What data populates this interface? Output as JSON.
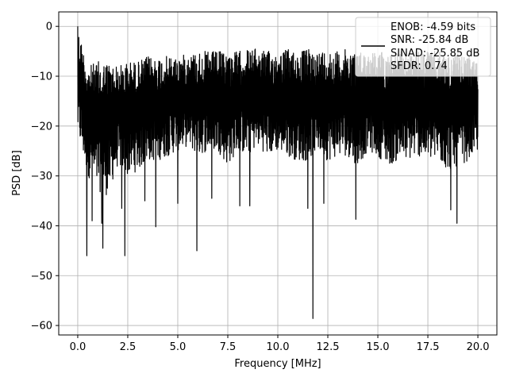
{
  "chart_data": {
    "type": "line",
    "title": "",
    "xlabel": "Frequency [MHz]",
    "ylabel": "PSD [dB]",
    "xlim": [
      -0.95,
      20.95
    ],
    "ylim": [
      -61.9,
      2.9
    ],
    "grid": true,
    "xticks": [
      0.0,
      2.5,
      5.0,
      7.5,
      10.0,
      12.5,
      15.0,
      17.5,
      20.0
    ],
    "xtick_labels": [
      "0.0",
      "2.5",
      "5.0",
      "7.5",
      "10.0",
      "12.5",
      "15.0",
      "17.5",
      "20.0"
    ],
    "yticks": [
      0,
      -10,
      -20,
      -30,
      -40,
      -50,
      -60
    ],
    "ytick_labels": [
      "0",
      "−10",
      "−20",
      "−30",
      "−40",
      "−50",
      "−60"
    ],
    "legend": {
      "placement": "top-right",
      "entries": [
        "ENOB: -4.59 bits",
        "SNR: -25.84 dB",
        "SINAD: -25.85 dB",
        "SFDR: 0.74"
      ]
    },
    "series": [
      {
        "color": "#000000",
        "envelope": {
          "x": [
            0.0,
            0.5,
            1.0,
            1.5,
            2.0,
            2.5,
            3.0,
            3.5,
            4.0,
            4.5,
            5.0,
            5.5,
            6.0,
            6.5,
            7.0,
            7.5,
            8.0,
            8.5,
            9.0,
            9.5,
            10.0,
            10.5,
            11.0,
            11.5,
            12.0,
            12.5,
            13.0,
            13.5,
            14.0,
            14.5,
            15.0,
            15.5,
            16.0,
            16.5,
            17.0,
            17.5,
            18.0,
            18.5,
            19.0,
            19.5,
            20.0
          ],
          "upper": [
            0,
            -8,
            -7,
            -7,
            -8,
            -7,
            -7,
            -6,
            -6,
            -6,
            -6,
            -5.5,
            -5,
            -5,
            -5,
            -5,
            -5,
            -4.5,
            -4.5,
            -5,
            -5,
            -4.5,
            -5,
            -4.5,
            -5,
            -4.5,
            -5,
            -4.5,
            -5,
            -5,
            -5,
            -5,
            -5,
            -5,
            -5,
            -5,
            -5,
            -5.5,
            -5.5,
            -6,
            -7
          ],
          "lower": [
            -22,
            -30,
            -33,
            -34,
            -28,
            -30,
            -29,
            -27,
            -27,
            -26,
            -25,
            -24,
            -26,
            -25,
            -25,
            -28,
            -25,
            -26,
            -24,
            -26,
            -25,
            -26,
            -27,
            -27,
            -25,
            -27,
            -26,
            -26,
            -28,
            -25,
            -26,
            -28,
            -27,
            -27,
            -26,
            -27,
            -27,
            -29,
            -28,
            -27,
            -25
          ]
        },
        "dips": [
          {
            "x": 0.45,
            "y": -46
          },
          {
            "x": 0.72,
            "y": -39
          },
          {
            "x": 1.2,
            "y": -39.5
          },
          {
            "x": 1.25,
            "y": -44.5
          },
          {
            "x": 2.35,
            "y": -46
          },
          {
            "x": 2.2,
            "y": -36.5
          },
          {
            "x": 3.35,
            "y": -35
          },
          {
            "x": 3.9,
            "y": -40.2
          },
          {
            "x": 5.0,
            "y": -35.5
          },
          {
            "x": 5.95,
            "y": -45
          },
          {
            "x": 6.7,
            "y": -34.5
          },
          {
            "x": 8.1,
            "y": -36
          },
          {
            "x": 8.6,
            "y": -36
          },
          {
            "x": 11.75,
            "y": -58.6
          },
          {
            "x": 11.5,
            "y": -36.5
          },
          {
            "x": 12.3,
            "y": -35.5
          },
          {
            "x": 13.9,
            "y": -38.7
          },
          {
            "x": 18.65,
            "y": -36.8
          },
          {
            "x": 18.95,
            "y": -39.5
          }
        ]
      }
    ]
  }
}
